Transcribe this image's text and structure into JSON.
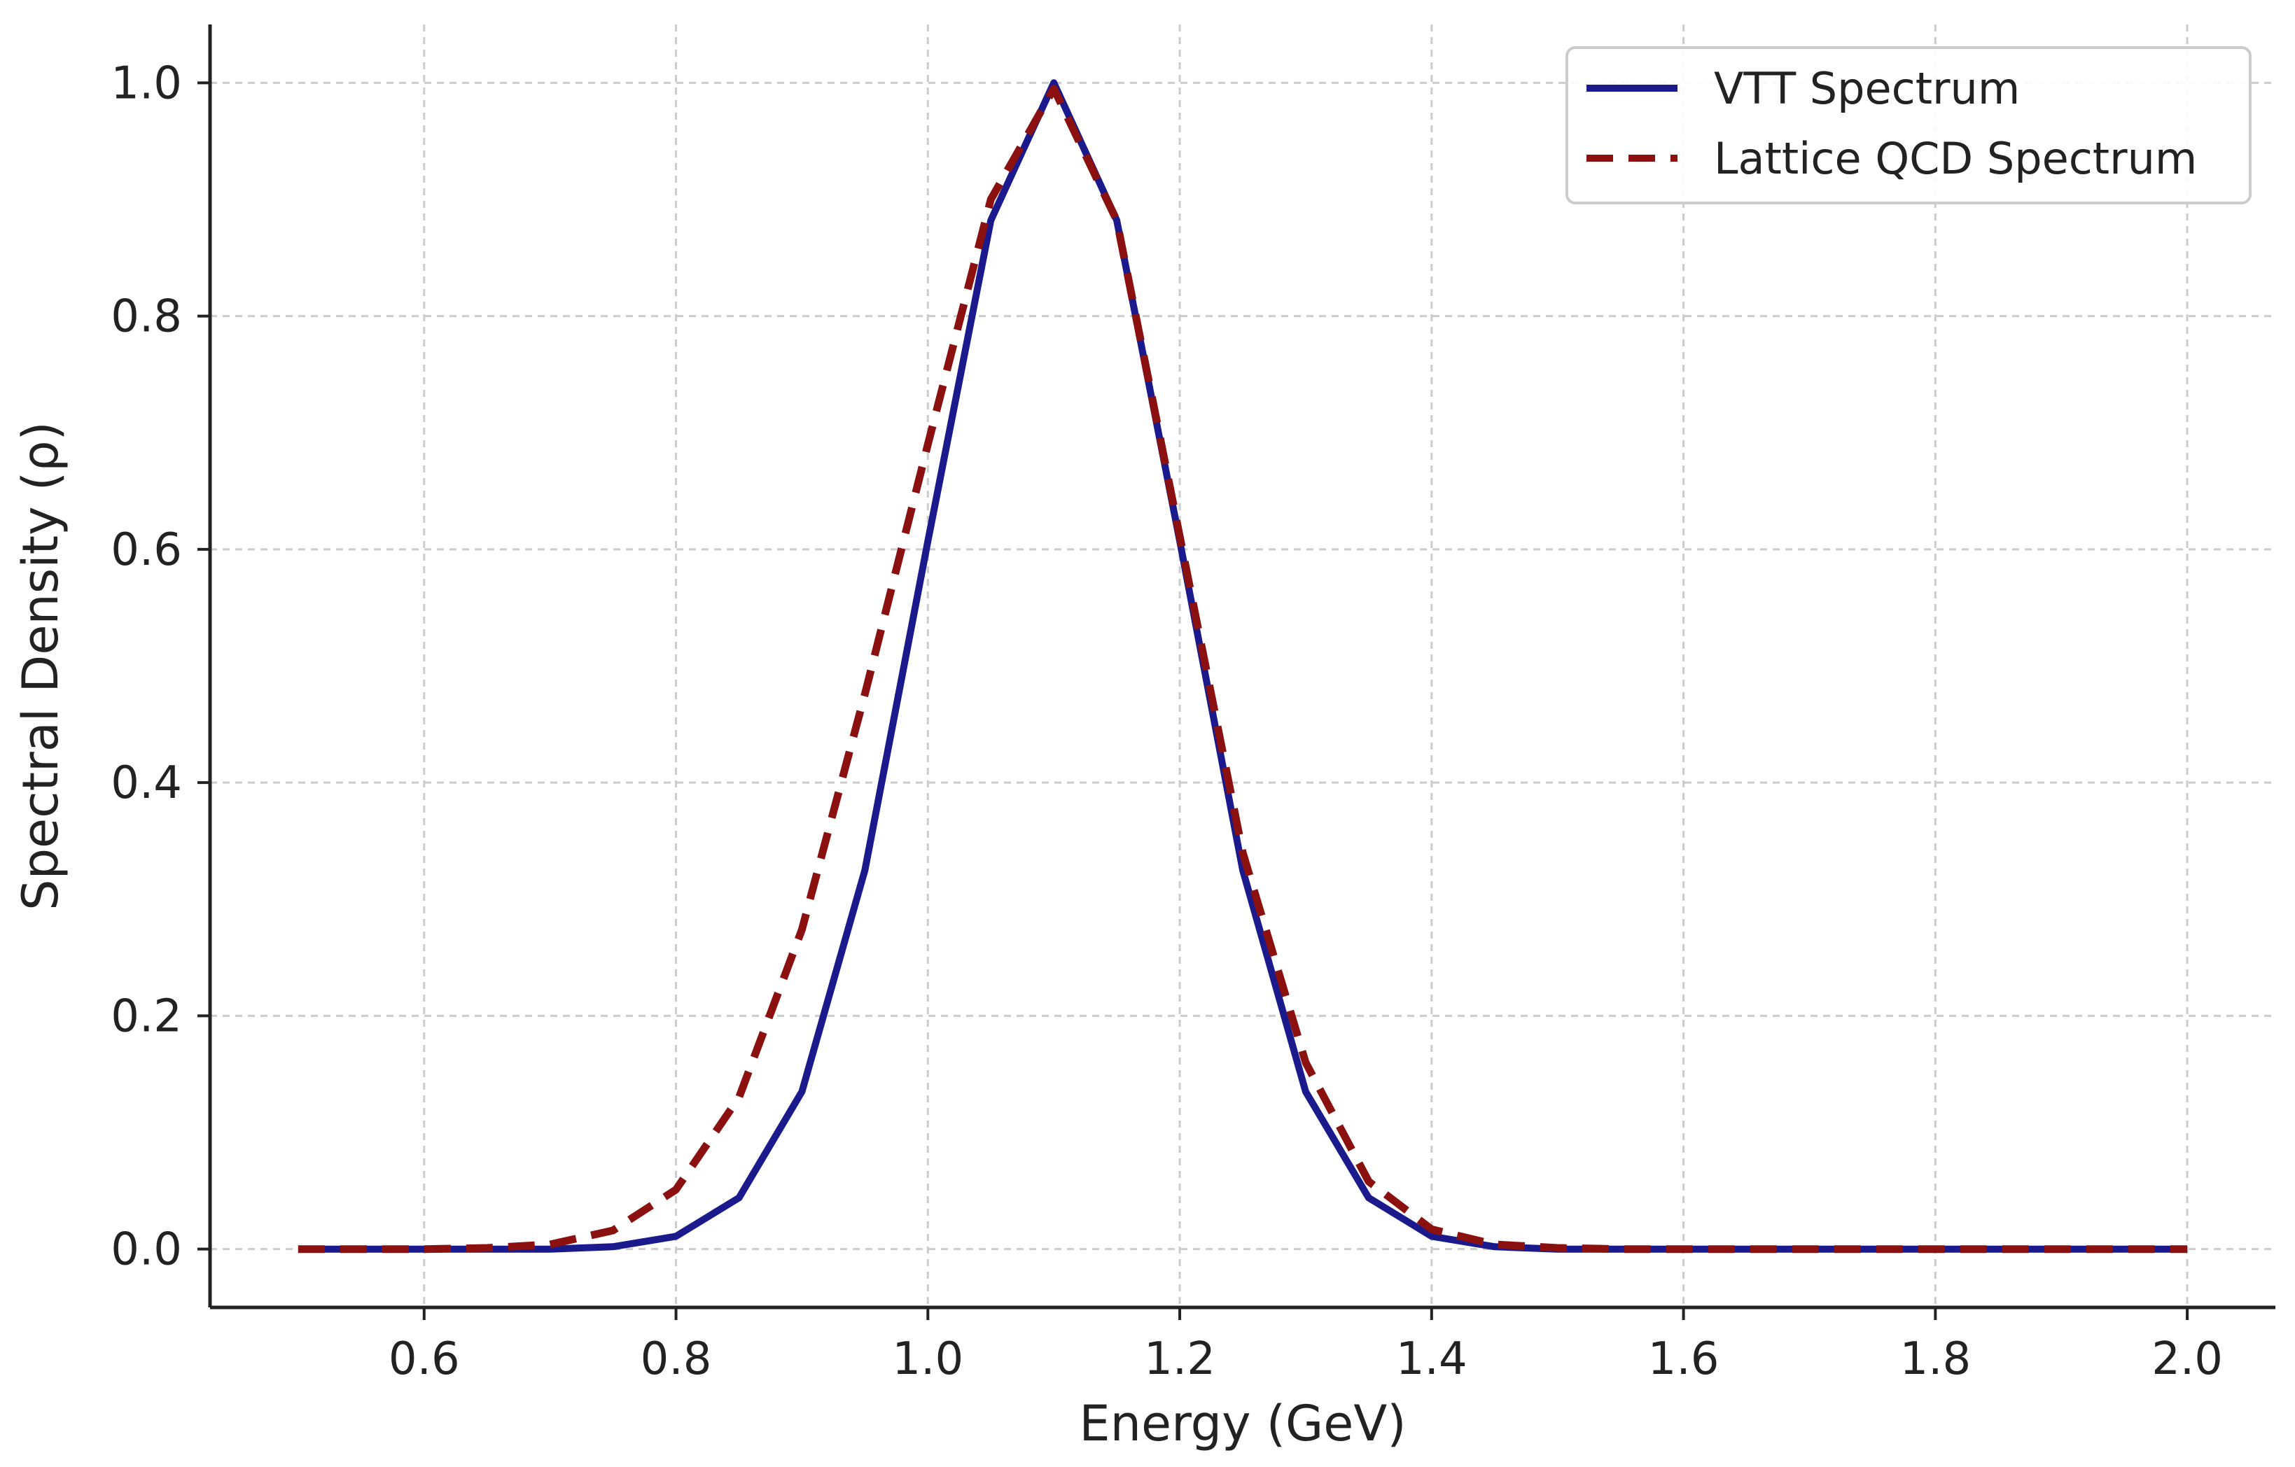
{
  "chart_data": {
    "type": "line",
    "title": "",
    "xlabel": "Energy (GeV)",
    "ylabel": "Spectral Density (ρ)",
    "xlim": [
      0.43,
      2.07
    ],
    "ylim": [
      -0.05,
      1.05
    ],
    "xticks": [
      0.6,
      0.8,
      1.0,
      1.2,
      1.4,
      1.6,
      1.8,
      2.0
    ],
    "xtick_labels": [
      "0.6",
      "0.8",
      "1.0",
      "1.2",
      "1.4",
      "1.6",
      "1.8",
      "2.0"
    ],
    "yticks": [
      0.0,
      0.2,
      0.4,
      0.6,
      0.8,
      1.0
    ],
    "ytick_labels": [
      "0.0",
      "0.2",
      "0.4",
      "0.6",
      "0.8",
      "1.0"
    ],
    "grid": true,
    "legend_position": "top-right",
    "x": [
      0.5,
      0.55,
      0.6,
      0.65,
      0.7,
      0.75,
      0.8,
      0.85,
      0.9,
      0.95,
      1.0,
      1.05,
      1.1,
      1.15,
      1.2,
      1.25,
      1.3,
      1.35,
      1.4,
      1.45,
      1.5,
      1.55,
      1.6,
      1.65,
      1.7,
      1.75,
      1.8,
      1.85,
      1.9,
      1.95,
      2.0
    ],
    "series": [
      {
        "name": "VTT Spectrum",
        "color": "#1a1a8c",
        "style": "solid",
        "values": [
          0.0,
          0.0,
          0.0,
          0.0,
          0.0,
          0.002,
          0.011,
          0.044,
          0.135,
          0.325,
          0.607,
          0.882,
          1.0,
          0.882,
          0.607,
          0.325,
          0.135,
          0.044,
          0.011,
          0.002,
          0.0,
          0.0,
          0.0,
          0.0,
          0.0,
          0.0,
          0.0,
          0.0,
          0.0,
          0.0,
          0.0
        ]
      },
      {
        "name": "Lattice QCD Spectrum",
        "color": "#8b1010",
        "style": "dashed",
        "values": [
          0.0,
          0.0,
          0.0,
          0.001,
          0.004,
          0.016,
          0.051,
          0.13,
          0.274,
          0.476,
          0.69,
          0.9,
          0.995,
          0.882,
          0.611,
          0.34,
          0.16,
          0.058,
          0.017,
          0.004,
          0.001,
          0.0,
          0.0,
          0.0,
          0.0,
          0.0,
          0.0,
          0.0,
          0.0,
          0.0,
          0.0
        ]
      }
    ]
  }
}
